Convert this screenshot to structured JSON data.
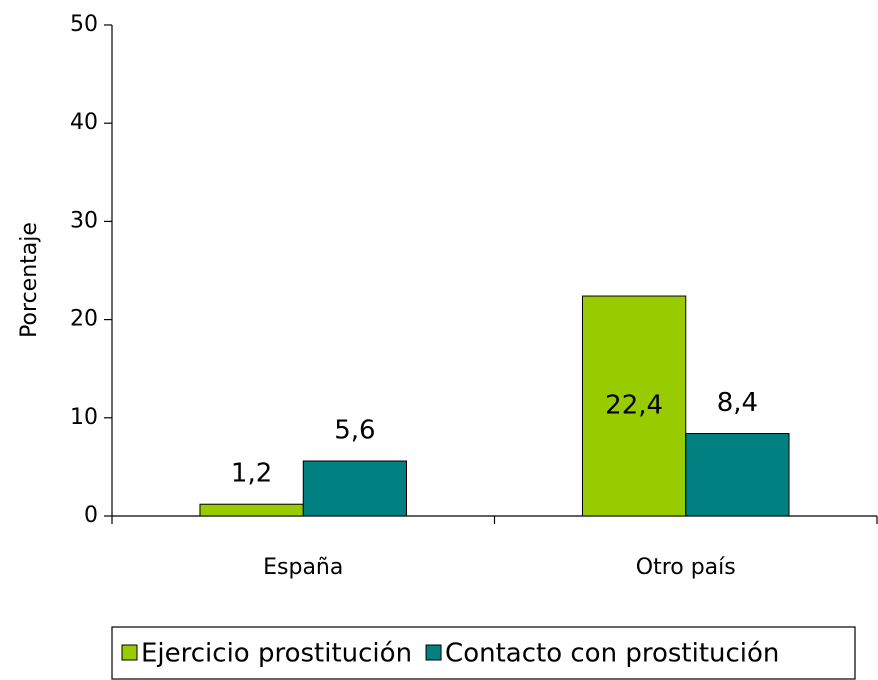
{
  "chart_data": {
    "type": "bar",
    "categories": [
      "España",
      "Otro país"
    ],
    "series": [
      {
        "name": "Ejercicio prostitución",
        "color": "#99cc00",
        "values": [
          1.2,
          22.4
        ],
        "value_labels": [
          "1,2",
          "22,4"
        ]
      },
      {
        "name": "Contacto con prostitución",
        "color": "#008080",
        "values": [
          5.6,
          8.4
        ],
        "value_labels": [
          "5,6",
          "8,4"
        ]
      }
    ],
    "ylabel": "Porcentaje",
    "ylim": [
      0,
      50
    ],
    "yticks": [
      0,
      10,
      20,
      30,
      40,
      50
    ],
    "legend": "bottom"
  }
}
